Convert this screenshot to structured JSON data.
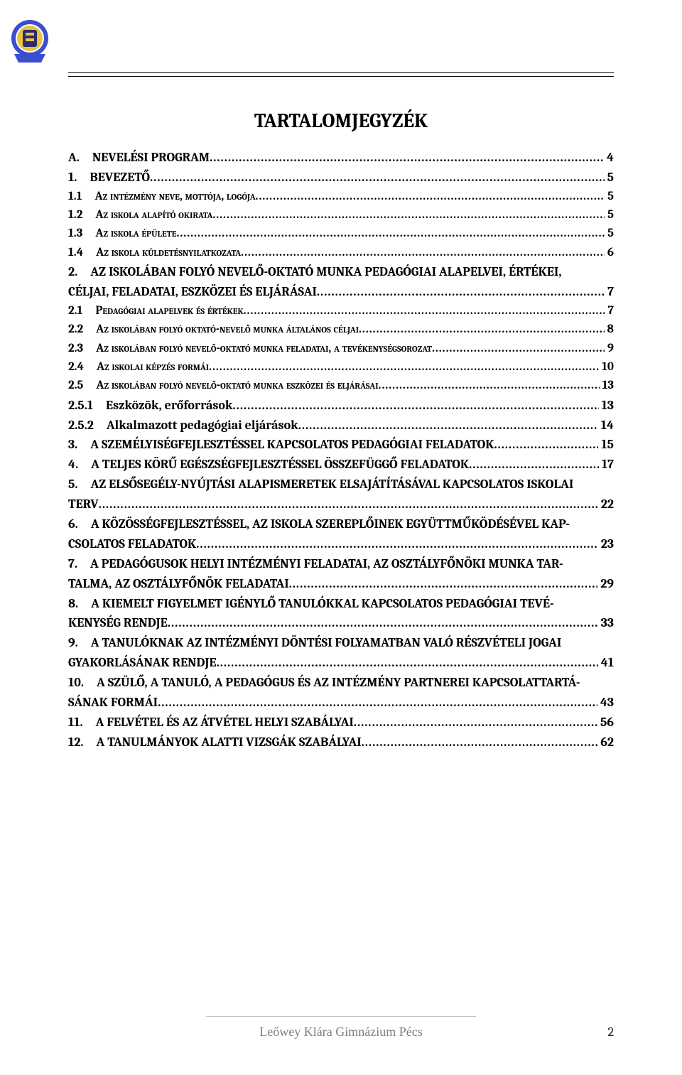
{
  "title": "TARTALOMJEGYZÉK",
  "footer": "Leőwey Klára Gimnázium Pécs",
  "page_number": "2",
  "leader_char": ".",
  "toc": [
    {
      "lvl": 1,
      "num": "A.",
      "text": "NEVELÉSI PROGRAM",
      "page": "4"
    },
    {
      "lvl": 1,
      "num": "1.",
      "text": "BEVEZETŐ",
      "page": "5"
    },
    {
      "lvl": 2,
      "num": "1.1",
      "text": "Az intézmény neve, mottója, logója",
      "page": "5"
    },
    {
      "lvl": 2,
      "num": "1.2",
      "text": "Az iskola alapító okirata",
      "page": "5"
    },
    {
      "lvl": 2,
      "num": "1.3",
      "text": "Az iskola épülete",
      "page": "5"
    },
    {
      "lvl": 2,
      "num": "1.4",
      "text": "Az iskola küldetésnyilatkozata",
      "page": "6"
    },
    {
      "lvl": 1,
      "num": "2.",
      "wrap": [
        "AZ ISKOLÁBAN FOLYÓ NEVELŐ-OKTATÓ MUNKA PEDAGÓGIAI ALAPELVEI, ÉRTÉKEI,",
        "CÉLJAI, FELADATAI, ESZKÖZEI ÉS ELJÁRÁSAI"
      ],
      "page": "7"
    },
    {
      "lvl": 2,
      "num": "2.1",
      "text": "Pedagógiai alapelvek és értékek",
      "page": "7"
    },
    {
      "lvl": 2,
      "num": "2.2",
      "text": "Az iskolában folyó oktató-nevelő munka általános céljai",
      "page": "8"
    },
    {
      "lvl": 2,
      "num": "2.3",
      "text": "Az iskolában folyó nevelő-oktató munka feladatai, a tevékenységsorozat",
      "page": "9"
    },
    {
      "lvl": 2,
      "num": "2.4",
      "text": "Az iskolai képzés formái",
      "page": "10"
    },
    {
      "lvl": 2,
      "num": "2.5",
      "text": "Az iskolában folyó nevelő-oktató munka eszközei és eljárásai",
      "page": "13"
    },
    {
      "lvl": 3,
      "num": "2.5.1",
      "text": "Eszközök, erőforrások",
      "page": "13"
    },
    {
      "lvl": 3,
      "num": "2.5.2",
      "text": "Alkalmazott pedagógiai eljárások",
      "page": "14"
    },
    {
      "lvl": 1,
      "num": "3.",
      "text": "A SZEMÉLYISÉGFEJLESZTÉSSEL KAPCSOLATOS PEDAGÓGIAI FELADATOK",
      "page": "15"
    },
    {
      "lvl": 1,
      "num": "4.",
      "text": "A TELJES KÖRŰ EGÉSZSÉGFEJLESZTÉSSEL ÖSSZEFÜGGŐ FELADATOK",
      "page": "17"
    },
    {
      "lvl": 1,
      "num": "5.",
      "wrap": [
        "AZ ELSŐSEGÉLY-NYÚJTÁSI ALAPISMERETEK ELSAJÁTÍTÁSÁVAL KAPCSOLATOS ISKOLAI",
        "TERV"
      ],
      "cont_no_num": true,
      "page": "22"
    },
    {
      "lvl": 1,
      "num": "6.",
      "wrap": [
        "A KÖZÖSSÉGFEJLESZTÉSSEL, AZ ISKOLA SZEREPLŐINEK EGYÜTTMŰKÖDÉSÉVEL KAP-",
        "CSOLATOS FELADATOK"
      ],
      "cont_no_num": true,
      "page": "23"
    },
    {
      "lvl": 1,
      "num": "7.",
      "wrap": [
        "A PEDAGÓGUSOK HELYI INTÉZMÉNYI FELADATAI, AZ OSZTÁLYFŐNÖKI MUNKA TAR-",
        "TALMA, AZ OSZTÁLYFŐNÖK FELADATAI"
      ],
      "cont_no_num": true,
      "page": "29"
    },
    {
      "lvl": 1,
      "num": "8.",
      "wrap": [
        "A KIEMELT FIGYELMET IGÉNYLŐ TANULÓKKAL KAPCSOLATOS PEDAGÓGIAI TEVÉ-",
        "KENYSÉG RENDJE"
      ],
      "cont_no_num": true,
      "page": "33"
    },
    {
      "lvl": 1,
      "num": "9.",
      "wrap": [
        "A TANULÓKNAK AZ INTÉZMÉNYI DÖNTÉSI FOLYAMATBAN VALÓ RÉSZVÉTELI JOGAI",
        "GYAKORLÁSÁNAK RENDJE"
      ],
      "cont_no_num": true,
      "page": "41"
    },
    {
      "lvl": 1,
      "num": "10.",
      "wrap": [
        "A SZÜLŐ, A TANULÓ, A PEDAGÓGUS ÉS AZ INTÉZMÉNY PARTNEREI KAPCSOLATTARTÁ-",
        "SÁNAK FORMÁI"
      ],
      "cont_no_num": true,
      "page": "43"
    },
    {
      "lvl": 1,
      "num": "11.",
      "text": "A FELVÉTEL ÉS AZ ÁTVÉTEL HELYI SZABÁLYAI",
      "page": "56"
    },
    {
      "lvl": 1,
      "num": "12.",
      "text": "A TANULMÁNYOK ALATTI VIZSGÁK SZABÁLYAI",
      "page": "62"
    }
  ],
  "logo_colors": {
    "ribbon": "#3b4ecf",
    "gold": "#e8c341",
    "dark": "#2b2b6f"
  }
}
